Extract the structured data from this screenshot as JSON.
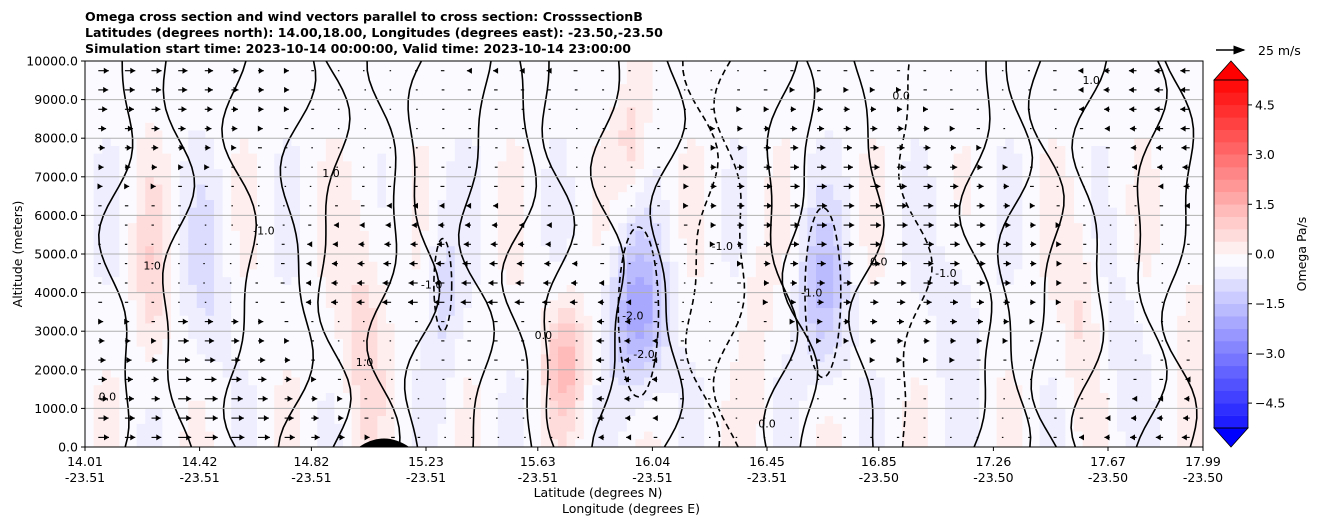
{
  "title": {
    "line1": "Omega cross section and wind vectors parallel to cross section: CrosssectionB",
    "line2": "Latitudes (degrees north): 14.00,18.00, Longitudes (degrees east): -23.50,-23.50",
    "line3": "Simulation start time: 2023-10-14 00:00:00, Valid time: 2023-10-14 23:00:00"
  },
  "chart_data": {
    "type": "contour",
    "title": "Omega cross section and wind vectors parallel to cross section: CrosssectionB",
    "ylabel": "Altitude (meters)",
    "xlabel_lat": "Latitude (degrees N)",
    "xlabel_lon": "Longitude (degrees E)",
    "ylim": [
      0,
      10000
    ],
    "y_ticks": [
      "0.0",
      "1000.0",
      "2000.0",
      "3000.0",
      "4000.0",
      "5000.0",
      "6000.0",
      "7000.0",
      "8000.0",
      "9000.0",
      "10000.0"
    ],
    "x_ticks": [
      {
        "lat": "14.01",
        "lon": "-23.51",
        "pos": 0.0
      },
      {
        "lat": "14.42",
        "lon": "-23.51",
        "pos": 0.1025
      },
      {
        "lat": "14.82",
        "lon": "-23.51",
        "pos": 0.2025
      },
      {
        "lat": "15.23",
        "lon": "-23.51",
        "pos": 0.305
      },
      {
        "lat": "15.63",
        "lon": "-23.51",
        "pos": 0.405
      },
      {
        "lat": "16.04",
        "lon": "-23.51",
        "pos": 0.5075
      },
      {
        "lat": "16.45",
        "lon": "-23.51",
        "pos": 0.61
      },
      {
        "lat": "16.85",
        "lon": "-23.50",
        "pos": 0.71
      },
      {
        "lat": "17.26",
        "lon": "-23.50",
        "pos": 0.8125
      },
      {
        "lat": "17.67",
        "lon": "-23.50",
        "pos": 0.915
      },
      {
        "lat": "17.99",
        "lon": "-23.50",
        "pos": 1.0
      }
    ],
    "colorbar": {
      "label": "Omega Pa/s",
      "ticks": [
        "4.5",
        "3.0",
        "1.5",
        "0.0",
        "−1.5",
        "−3.0",
        "−4.5"
      ],
      "range": [
        -5.25,
        5.25
      ],
      "colormap": "bwr"
    },
    "vector_key": {
      "label": "25 m/s"
    },
    "contour_labels": [
      "0.0",
      "1.0",
      "-1.0",
      "-2.0",
      "1.0",
      "0.0",
      "-1.0",
      "-2.0",
      "0.0",
      "-1.0",
      "1.0",
      "0.0",
      "-1.0",
      "1.0",
      "0.0",
      "-1.0"
    ],
    "colors": {
      "positive": "#ff0000",
      "negative": "#0000ff",
      "terrain": "#000000",
      "grid": "#b0b0b0"
    }
  }
}
